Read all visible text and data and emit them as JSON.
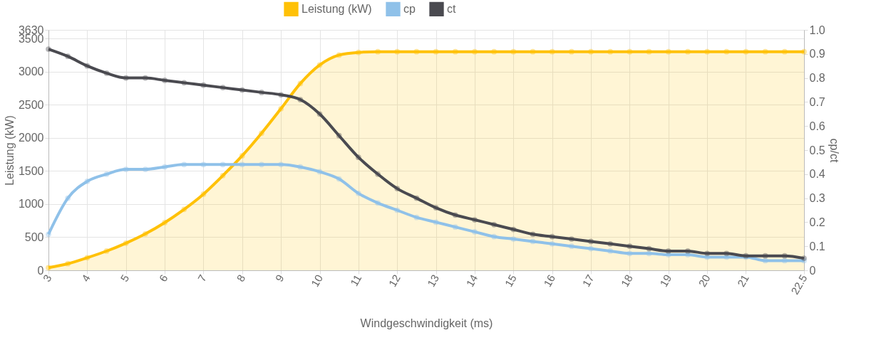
{
  "chart_data": {
    "type": "line",
    "xlabel": "Windgeschwindigkeit (ms)",
    "ylabel": "Leistung (kW)",
    "y2label": "cp/ct",
    "x": [
      3,
      3.5,
      4,
      4.5,
      5,
      5.5,
      6,
      6.5,
      7,
      7.5,
      8,
      8.5,
      9,
      9.5,
      10,
      10.5,
      11,
      11.5,
      12,
      12.5,
      13,
      13.5,
      14,
      14.5,
      15,
      15.5,
      16,
      16.5,
      17,
      17.5,
      18,
      18.5,
      19,
      19.5,
      20,
      20.5,
      21,
      21.5,
      22,
      22.5
    ],
    "xlim": [
      3,
      22.5
    ],
    "xticks": [
      3,
      4,
      5,
      6,
      7,
      8,
      9,
      10,
      11,
      12,
      13,
      14,
      15,
      16,
      17,
      18,
      19,
      20,
      21,
      22.5
    ],
    "ylim": [
      0,
      3630
    ],
    "yticks": [
      0,
      500,
      1000,
      1500,
      2000,
      2500,
      3000,
      3500,
      3630
    ],
    "y2lim": [
      0,
      1.0
    ],
    "y2ticks": [
      0,
      0.1,
      0.2,
      0.3,
      0.4,
      0.5,
      0.6,
      0.7,
      0.8,
      0.9,
      {
        "value": 1.0,
        "label": "1.0"
      }
    ],
    "grid": true,
    "legend": "top",
    "marker": "circle",
    "series": [
      {
        "name": "Leistung (kW)",
        "type": "area",
        "color": "#ffc107",
        "values": [
          40,
          100,
          190,
          290,
          410,
          550,
          720,
          920,
          1150,
          1430,
          1730,
          2070,
          2440,
          2820,
          3100,
          3250,
          3290,
          3300,
          3300,
          3300,
          3300,
          3300,
          3300,
          3300,
          3300,
          3300,
          3300,
          3300,
          3300,
          3300,
          3300,
          3300,
          3300,
          3300,
          3300,
          3300,
          3300,
          3300,
          3300,
          3300
        ]
      },
      {
        "name": "cp",
        "type": "line",
        "axis": "y2",
        "color": "#8fc1e9",
        "values": [
          0.15,
          0.3,
          0.37,
          0.4,
          0.42,
          0.42,
          0.43,
          0.44,
          0.44,
          0.44,
          0.44,
          0.44,
          0.44,
          0.43,
          0.41,
          0.38,
          0.32,
          0.28,
          0.25,
          0.22,
          0.2,
          0.18,
          0.16,
          0.14,
          0.13,
          0.12,
          0.11,
          0.1,
          0.09,
          0.08,
          0.07,
          0.07,
          0.065,
          0.065,
          0.055,
          0.055,
          0.055,
          0.04,
          0.04,
          0.04
        ]
      },
      {
        "name": "ct",
        "type": "line",
        "axis": "y2",
        "color": "#4a4a50",
        "values": [
          0.92,
          0.89,
          0.85,
          0.82,
          0.8,
          0.8,
          0.79,
          0.78,
          0.77,
          0.76,
          0.75,
          0.74,
          0.73,
          0.71,
          0.65,
          0.56,
          0.47,
          0.4,
          0.34,
          0.3,
          0.26,
          0.23,
          0.21,
          0.19,
          0.17,
          0.15,
          0.14,
          0.13,
          0.12,
          0.11,
          0.1,
          0.09,
          0.08,
          0.08,
          0.07,
          0.07,
          0.06,
          0.06,
          0.06,
          0.05
        ]
      }
    ]
  }
}
